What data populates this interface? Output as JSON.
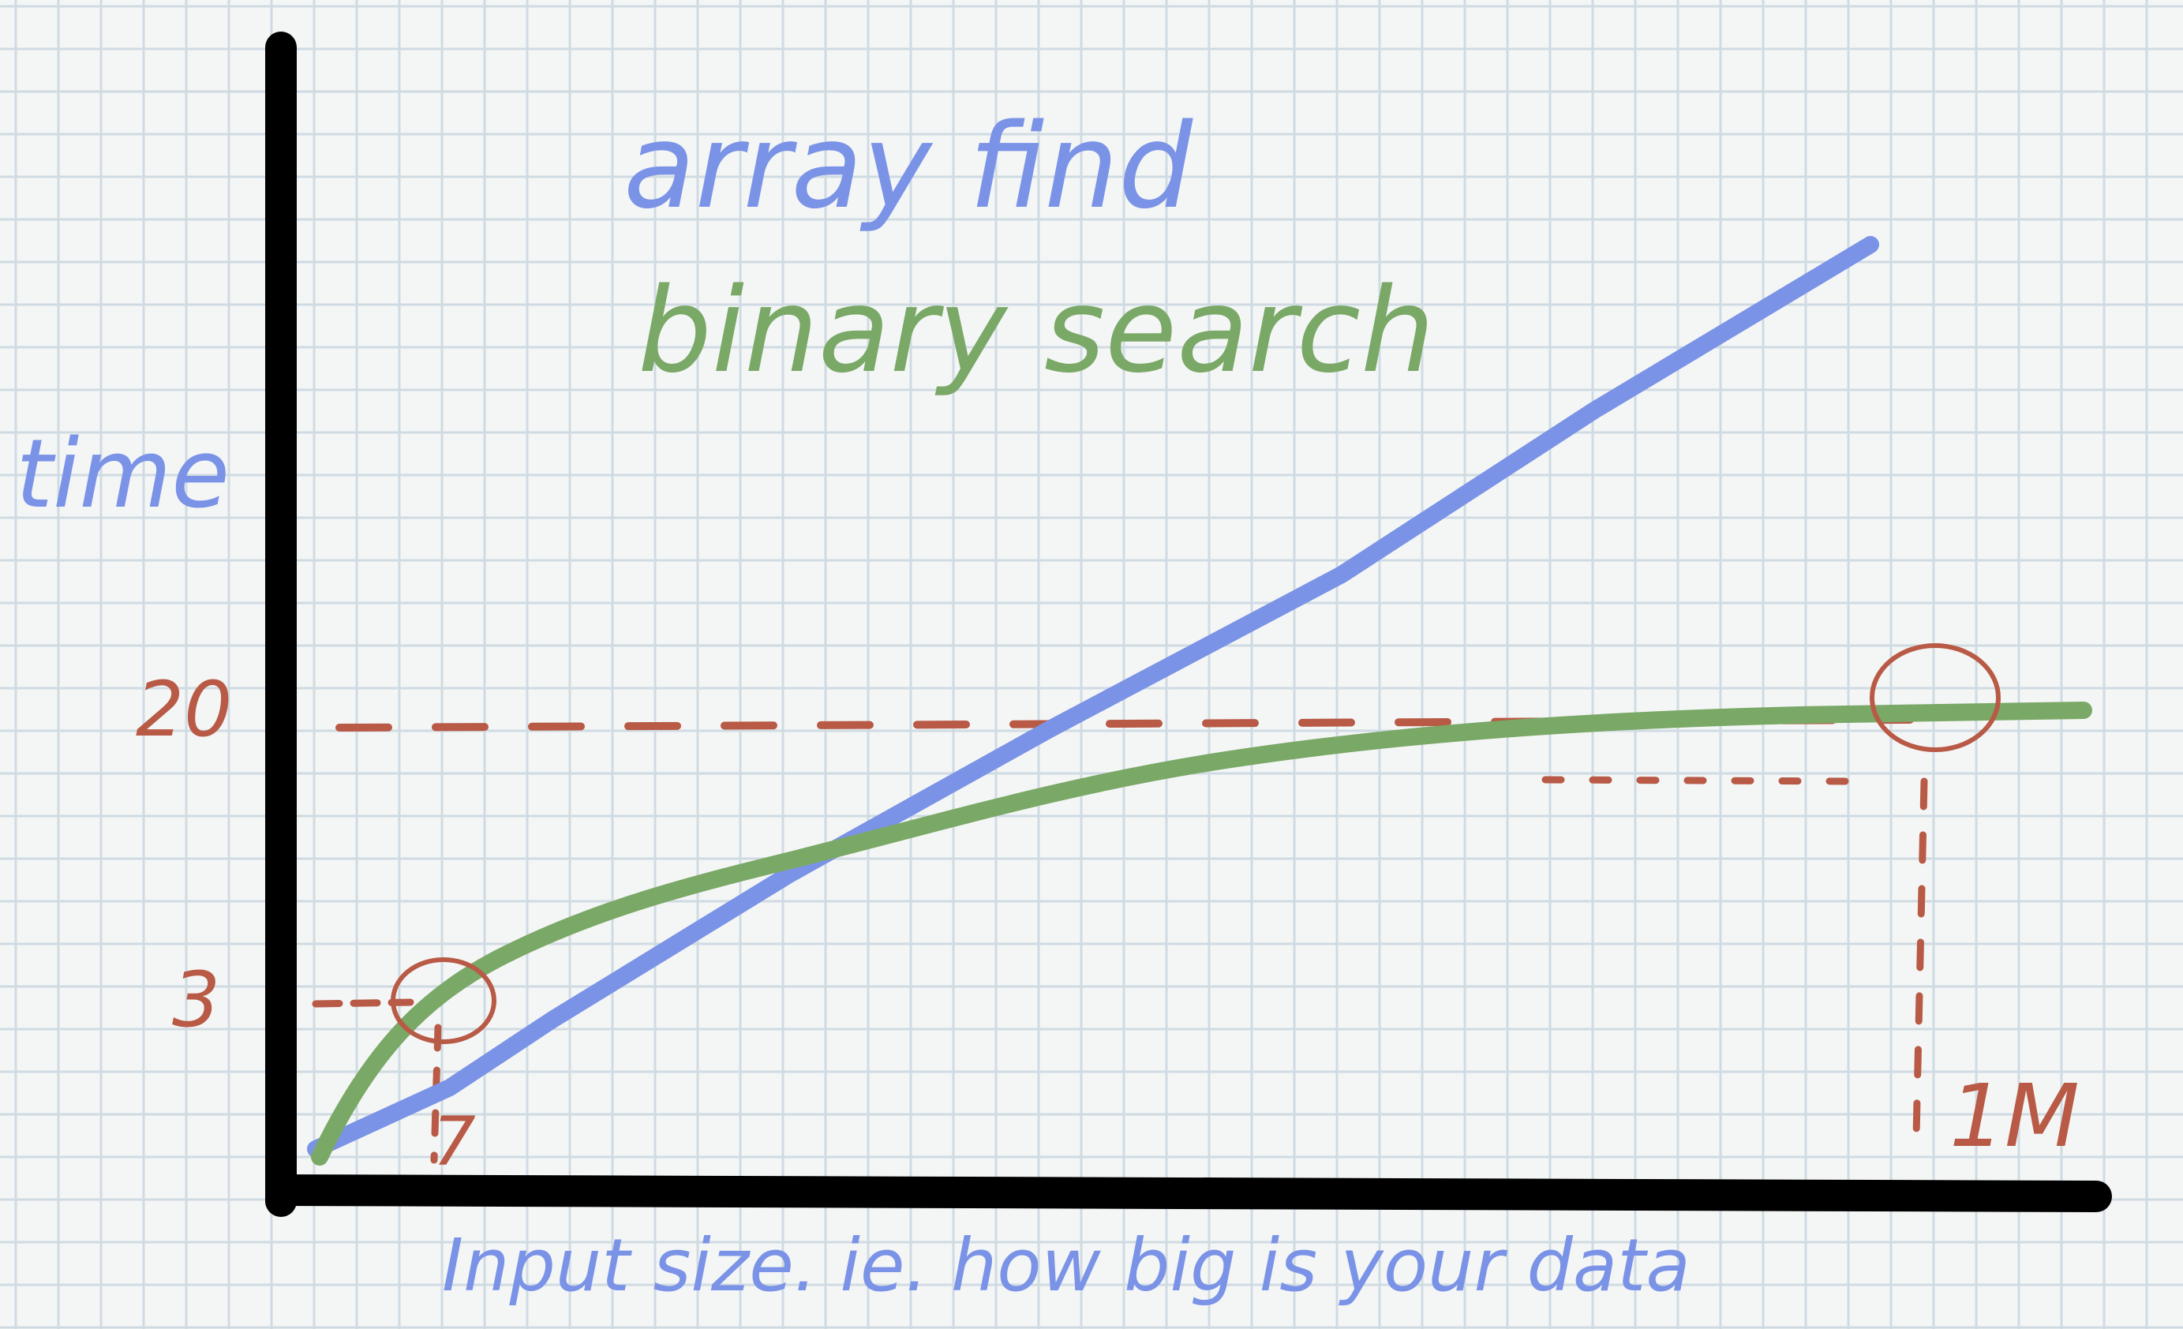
{
  "chart_data": {
    "type": "line",
    "title_lines": [
      "array find",
      "binary search"
    ],
    "ylabel": "time",
    "xlabel": "Input size.   ie. how big is your data",
    "ytick_labels": [
      "20",
      "3"
    ],
    "xtick_labels": [
      "7",
      "1M"
    ],
    "series": [
      {
        "name": "array find",
        "color": "#7b93e6",
        "description": "linear"
      },
      {
        "name": "binary search",
        "color": "#7aa866",
        "description": "logarithmic"
      }
    ],
    "annotations": [
      {
        "text": "3",
        "x": "7",
        "note": "circled point on binary search curve"
      },
      {
        "text": "20",
        "x": "1M",
        "note": "circled point on binary search curve"
      }
    ]
  },
  "colors": {
    "grid": "#cfdbe2",
    "axis": "#000000",
    "blue_ink": "#7b93e6",
    "green_ink": "#7aa866",
    "red_ink": "#b85a45"
  }
}
